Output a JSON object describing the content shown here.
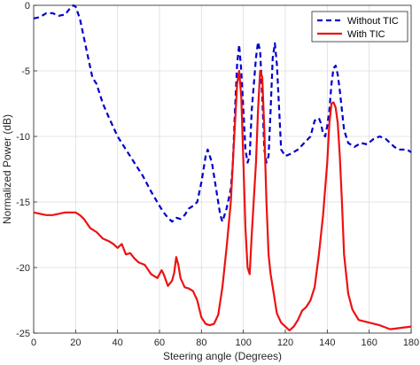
{
  "chart_data": {
    "type": "line",
    "title": "",
    "xlabel": "Steering angle (Degrees)",
    "ylabel": "Normalized Power (dB)",
    "xlim": [
      0,
      180
    ],
    "ylim": [
      -25,
      0
    ],
    "xticks": [
      "0",
      "20",
      "40",
      "60",
      "80",
      "100",
      "120",
      "140",
      "160",
      "180"
    ],
    "yticks": [
      "0",
      "-5",
      "-10",
      "-15",
      "-20",
      "-25"
    ],
    "grid": true,
    "legend_position": "top-right",
    "series": [
      {
        "name": "Without TIC",
        "color": "#0000cc",
        "style": "dashed",
        "x": [
          0,
          3,
          6,
          9,
          12,
          15,
          17,
          19,
          20,
          22,
          24,
          26,
          28,
          30,
          33,
          36,
          40,
          44,
          48,
          52,
          56,
          60,
          62,
          64,
          66,
          68,
          70,
          72,
          74,
          76,
          78,
          80,
          82,
          83,
          85,
          87,
          89,
          90,
          92,
          94,
          95,
          96,
          97,
          98,
          99,
          100,
          101,
          102,
          103,
          104,
          106,
          107,
          108,
          109,
          110,
          111,
          112,
          113,
          114,
          115,
          116,
          118,
          120,
          123,
          126,
          129,
          132,
          134,
          136,
          137,
          138,
          139,
          140,
          141,
          142,
          143,
          144,
          145,
          146,
          148,
          150,
          153,
          156,
          159,
          162,
          165,
          168,
          170,
          172,
          174,
          176,
          178,
          180
        ],
        "y": [
          -1.0,
          -0.9,
          -0.6,
          -0.6,
          -0.8,
          -0.7,
          -0.3,
          0.0,
          -0.1,
          -1.0,
          -2.5,
          -4.0,
          -5.5,
          -6.0,
          -7.5,
          -8.6,
          -10.0,
          -11.0,
          -12.0,
          -13.0,
          -14.2,
          -15.3,
          -15.8,
          -16.2,
          -16.5,
          -16.2,
          -16.3,
          -16.0,
          -15.5,
          -15.3,
          -15.0,
          -13.5,
          -11.5,
          -11.0,
          -12.0,
          -14.0,
          -16.0,
          -16.5,
          -15.5,
          -14.0,
          -12.0,
          -8.0,
          -4.5,
          -3.0,
          -5.0,
          -8.0,
          -11.0,
          -12.0,
          -11.5,
          -8.0,
          -4.0,
          -2.8,
          -3.5,
          -7.0,
          -11.0,
          -12.0,
          -11.5,
          -8.0,
          -4.0,
          -2.9,
          -4.5,
          -11.0,
          -11.5,
          -11.3,
          -11.0,
          -10.5,
          -10.0,
          -8.8,
          -8.6,
          -9.0,
          -9.8,
          -10.0,
          -9.2,
          -8.0,
          -6.0,
          -4.8,
          -4.6,
          -5.3,
          -6.5,
          -9.5,
          -10.5,
          -10.8,
          -10.5,
          -10.6,
          -10.2,
          -10.0,
          -10.2,
          -10.5,
          -10.8,
          -11.0,
          -11.0,
          -11.0,
          -11.2
        ]
      },
      {
        "name": "With TIC",
        "color": "#ee1111",
        "style": "solid",
        "x": [
          0,
          3,
          6,
          9,
          12,
          15,
          18,
          20,
          22,
          24,
          27,
          30,
          33,
          36,
          38,
          40,
          42,
          44,
          46,
          48,
          50,
          53,
          56,
          59,
          61,
          62,
          64,
          66,
          67,
          68,
          69,
          70,
          72,
          74,
          76,
          78,
          80,
          82,
          84,
          86,
          88,
          90,
          92,
          94,
          95,
          96,
          97,
          98,
          99,
          100,
          101,
          102,
          103,
          104,
          106,
          107,
          108,
          109,
          110,
          111,
          112,
          113,
          114,
          116,
          118,
          120,
          122,
          124,
          126,
          128,
          130,
          132,
          134,
          136,
          138,
          140,
          141,
          142,
          143,
          144,
          145,
          146,
          147,
          148,
          150,
          152,
          155,
          160,
          165,
          170,
          175,
          180
        ],
        "y": [
          -15.8,
          -15.9,
          -16.0,
          -16.0,
          -15.9,
          -15.8,
          -15.8,
          -15.8,
          -16.0,
          -16.3,
          -17.0,
          -17.3,
          -17.8,
          -18.0,
          -18.2,
          -18.5,
          -18.2,
          -19.0,
          -18.9,
          -19.3,
          -19.6,
          -19.8,
          -20.5,
          -20.8,
          -20.2,
          -20.5,
          -21.4,
          -21.0,
          -20.4,
          -19.2,
          -19.8,
          -20.8,
          -21.5,
          -21.6,
          -21.8,
          -22.5,
          -23.8,
          -24.3,
          -24.4,
          -24.3,
          -23.6,
          -21.5,
          -18.5,
          -15.0,
          -12.0,
          -9.0,
          -6.0,
          -5.0,
          -7.0,
          -12.0,
          -17.0,
          -20.0,
          -20.5,
          -17.5,
          -12.0,
          -8.0,
          -5.0,
          -5.5,
          -9.5,
          -15.0,
          -19.0,
          -20.5,
          -21.5,
          -23.5,
          -24.2,
          -24.5,
          -24.8,
          -24.5,
          -24.0,
          -23.3,
          -23.0,
          -22.5,
          -21.5,
          -19.0,
          -16.0,
          -12.0,
          -9.0,
          -7.5,
          -7.4,
          -7.8,
          -9.0,
          -11.5,
          -15.0,
          -19.0,
          -22.0,
          -23.2,
          -24.0,
          -24.2,
          -24.4,
          -24.7,
          -24.6,
          -24.5
        ]
      }
    ]
  }
}
